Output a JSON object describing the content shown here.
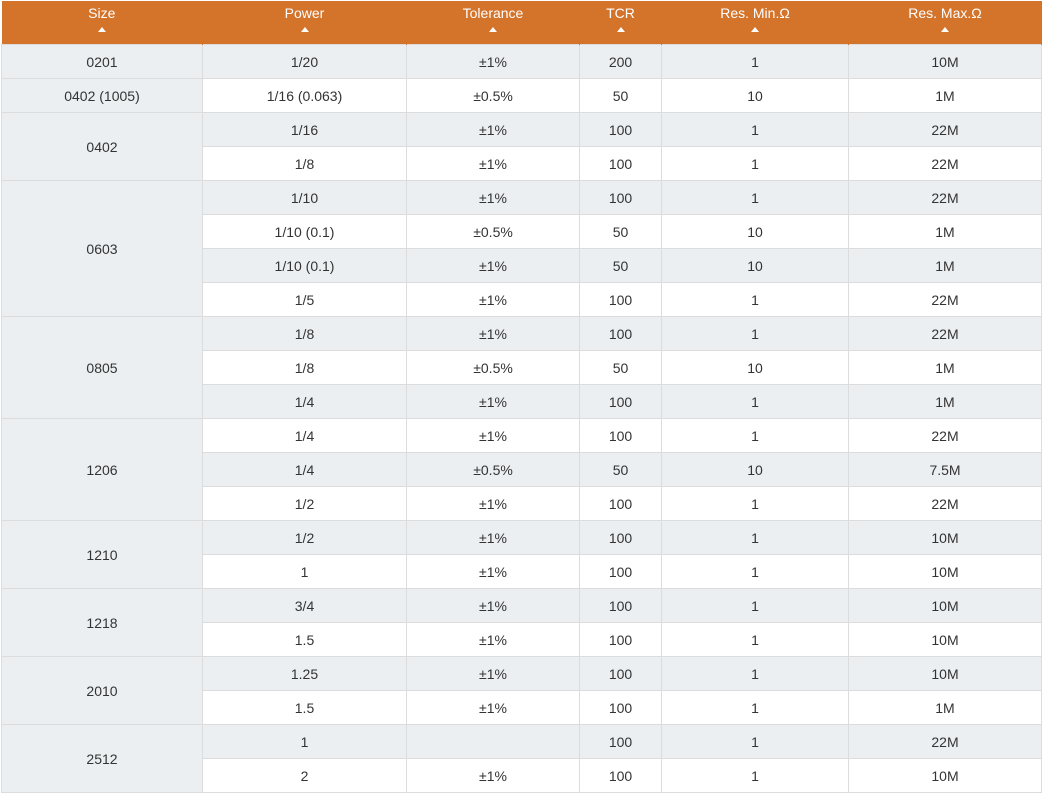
{
  "table": {
    "headers": [
      "Size",
      "Power",
      "Tolerance",
      "TCR",
      "Res. Min.Ω",
      "Res. Max.Ω"
    ],
    "rows": [
      {
        "size": "0201",
        "power": "1/20",
        "tolerance": "±1%",
        "tcr": "200",
        "min": "1",
        "max": "10M"
      },
      {
        "size": "0402 (1005)",
        "power": "1/16 (0.063)",
        "tolerance": "±0.5%",
        "tcr": "50",
        "min": "10",
        "max": "1M"
      },
      {
        "size": "0402",
        "power": "1/16",
        "tolerance": "±1%",
        "tcr": "100",
        "min": "1",
        "max": "22M"
      },
      {
        "size": "",
        "power": "1/8",
        "tolerance": "±1%",
        "tcr": "100",
        "min": "1",
        "max": "22M"
      },
      {
        "size": "0603",
        "power": "1/10",
        "tolerance": "±1%",
        "tcr": "100",
        "min": "1",
        "max": "22M"
      },
      {
        "size": "",
        "power": "1/10 (0.1)",
        "tolerance": "±0.5%",
        "tcr": "50",
        "min": "10",
        "max": "1M"
      },
      {
        "size": "",
        "power": "1/10 (0.1)",
        "tolerance": "±1%",
        "tcr": "50",
        "min": "10",
        "max": "1M"
      },
      {
        "size": "",
        "power": "1/5",
        "tolerance": "±1%",
        "tcr": "100",
        "min": "1",
        "max": "22M"
      },
      {
        "size": "0805",
        "power": "1/8",
        "tolerance": "±1%",
        "tcr": "100",
        "min": "1",
        "max": "22M"
      },
      {
        "size": "",
        "power": "1/8",
        "tolerance": "±0.5%",
        "tcr": "50",
        "min": "10",
        "max": "1M"
      },
      {
        "size": "",
        "power": "1/4",
        "tolerance": "±1%",
        "tcr": "100",
        "min": "1",
        "max": "1M"
      },
      {
        "size": "1206",
        "power": "1/4",
        "tolerance": "±1%",
        "tcr": "100",
        "min": "1",
        "max": "22M"
      },
      {
        "size": "",
        "power": "1/4",
        "tolerance": "±0.5%",
        "tcr": "50",
        "min": "10",
        "max": "7.5M"
      },
      {
        "size": "",
        "power": "1/2",
        "tolerance": "±1%",
        "tcr": "100",
        "min": "1",
        "max": "22M"
      },
      {
        "size": "1210",
        "power": "1/2",
        "tolerance": "±1%",
        "tcr": "100",
        "min": "1",
        "max": "10M"
      },
      {
        "size": "",
        "power": "1",
        "tolerance": "±1%",
        "tcr": "100",
        "min": "1",
        "max": "10M"
      },
      {
        "size": "1218",
        "power": "3/4",
        "tolerance": "±1%",
        "tcr": "100",
        "min": "1",
        "max": "10M"
      },
      {
        "size": "",
        "power": "1.5",
        "tolerance": "±1%",
        "tcr": "100",
        "min": "1",
        "max": "10M"
      },
      {
        "size": "2010",
        "power": "1.25",
        "tolerance": "±1%",
        "tcr": "100",
        "min": "1",
        "max": "10M"
      },
      {
        "size": "",
        "power": "1.5",
        "tolerance": "±1%",
        "tcr": "100",
        "min": "1",
        "max": "1M"
      },
      {
        "size": "2512",
        "power": "1",
        "tolerance": "",
        "tcr": "100",
        "min": "1",
        "max": "22M"
      },
      {
        "size": "",
        "power": "2",
        "tolerance": "±1%",
        "tcr": "100",
        "min": "1",
        "max": "10M"
      }
    ]
  },
  "colors": {
    "header_bg": "#d4732a",
    "header_text": "#ffffff",
    "row_alt": "#eceff2",
    "row_base": "#ffffff",
    "border": "#dcdcdc"
  },
  "icons": {
    "sort": "sort-ascending-icon"
  }
}
